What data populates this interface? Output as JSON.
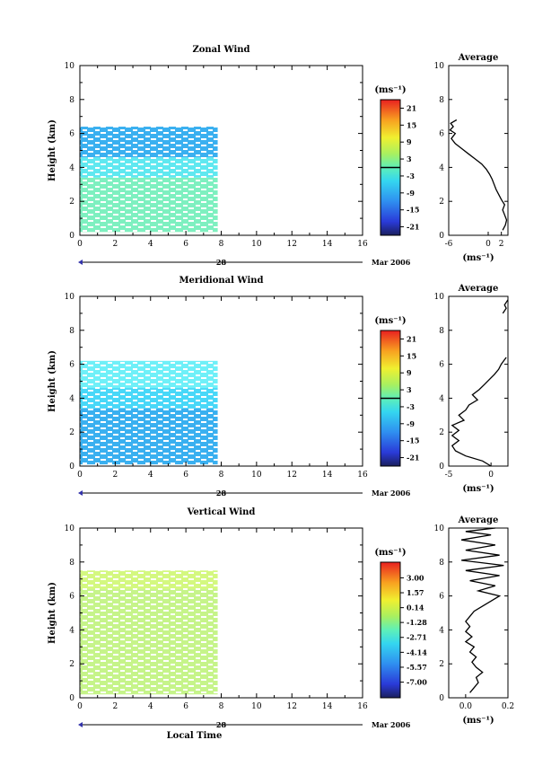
{
  "chart_data": [
    {
      "type": "heatmap",
      "title": "Zonal Wind",
      "ylabel": "Height (km)",
      "xlabel": "",
      "xlim": [
        0,
        16
      ],
      "ylim": [
        0,
        10
      ],
      "x_ticks": [
        "0",
        "2",
        "4",
        "6",
        "8",
        "10",
        "12",
        "14",
        "16"
      ],
      "y_ticks": [
        "0",
        "2",
        "4",
        "6",
        "8",
        "10"
      ],
      "date_label": "28",
      "date_suffix": "Mar 2006",
      "colorbar": {
        "unit": "(ms⁻¹)",
        "min": -24,
        "max": 24,
        "ticks": [
          "21",
          "15",
          "9",
          "3",
          "-3",
          "-9",
          "-15",
          "-21"
        ],
        "tick_values": [
          21,
          15,
          9,
          3,
          -3,
          -9,
          -15,
          -21
        ],
        "marker_value": 0
      },
      "data_extent": {
        "x": [
          0,
          7.8
        ],
        "y": [
          0.2,
          6.4
        ]
      },
      "layers": [
        {
          "y": [
            0.2,
            2.2
          ],
          "value": 1.5,
          "color": "#a4f0a4"
        },
        {
          "y": [
            0.2,
            3.4
          ],
          "value": 0.0,
          "color": "#7ef0c0"
        },
        {
          "y": [
            3.4,
            4.6
          ],
          "value": -2.0,
          "color": "#5fe8f0"
        },
        {
          "y": [
            4.6,
            6.4
          ],
          "value": -6.0,
          "color": "#3ab0f0"
        }
      ],
      "average": {
        "title": "Average",
        "unit": "(ms⁻¹)",
        "xlim": [
          -6,
          3
        ],
        "x_ticks": [
          "-6",
          "0",
          "2"
        ],
        "x_tick_values": [
          -6,
          0,
          2
        ],
        "y_ticks": [
          "0",
          "2",
          "4",
          "6",
          "8",
          "10"
        ],
        "profile": {
          "x": [
            2.2,
            2.6,
            2.8,
            2.5,
            2.2,
            2.5,
            2.0,
            1.6,
            1.2,
            0.9,
            0.6,
            0.2,
            -0.3,
            -1.0,
            -2.0,
            -3.0,
            -4.0,
            -5.0,
            -5.6,
            -5.0,
            -5.8,
            -5.3,
            -5.7,
            -4.8
          ],
          "y": [
            0.3,
            0.6,
            0.9,
            1.2,
            1.5,
            1.8,
            2.1,
            2.4,
            2.7,
            3.0,
            3.3,
            3.6,
            3.9,
            4.2,
            4.5,
            4.8,
            5.1,
            5.4,
            5.7,
            6.0,
            6.2,
            6.4,
            6.6,
            6.8
          ]
        }
      }
    },
    {
      "type": "heatmap",
      "title": "Meridional Wind",
      "ylabel": "Height (km)",
      "xlabel": "",
      "xlim": [
        0,
        16
      ],
      "ylim": [
        0,
        10
      ],
      "x_ticks": [
        "0",
        "2",
        "4",
        "6",
        "8",
        "10",
        "12",
        "14",
        "16"
      ],
      "y_ticks": [
        "0",
        "2",
        "4",
        "6",
        "8",
        "10"
      ],
      "date_label": "28",
      "date_suffix": "Mar 2006",
      "colorbar": {
        "unit": "(ms⁻¹)",
        "min": -24,
        "max": 24,
        "ticks": [
          "21",
          "15",
          "9",
          "3",
          "-3",
          "-9",
          "-15",
          "-21"
        ],
        "tick_values": [
          21,
          15,
          9,
          3,
          -3,
          -9,
          -15,
          -21
        ],
        "marker_value": 0
      },
      "data_extent": {
        "x": [
          0,
          7.8
        ],
        "y": [
          0.1,
          6.2
        ]
      },
      "layers": [
        {
          "y": [
            0.1,
            3.4
          ],
          "value": -6.0,
          "color": "#3ab0f0"
        },
        {
          "y": [
            3.4,
            4.6
          ],
          "value": -3.0,
          "color": "#48d8f8"
        },
        {
          "y": [
            4.6,
            6.2
          ],
          "value": -1.5,
          "color": "#6ff0f8"
        }
      ],
      "average": {
        "title": "Average",
        "unit": "(ms⁻¹)",
        "xlim": [
          -5,
          2
        ],
        "x_ticks": [
          "-5",
          "0"
        ],
        "x_tick_values": [
          -5,
          0
        ],
        "y_ticks": [
          "0",
          "2",
          "4",
          "6",
          "8",
          "10"
        ],
        "profile": {
          "x": [
            0.0,
            -1.0,
            -3.0,
            -4.2,
            -4.6,
            -3.8,
            -4.6,
            -3.8,
            -4.6,
            -3.2,
            -3.8,
            -3.0,
            -2.6,
            -1.6,
            -2.2,
            -1.4,
            -0.8,
            -0.2,
            0.4,
            0.9,
            1.2,
            1.5,
            1.8
          ],
          "y": [
            0.0,
            0.3,
            0.6,
            0.9,
            1.2,
            1.5,
            1.8,
            2.1,
            2.4,
            2.7,
            3.0,
            3.3,
            3.6,
            3.9,
            4.2,
            4.5,
            4.8,
            5.1,
            5.4,
            5.7,
            6.0,
            6.2,
            6.4
          ]
        },
        "profile_upper": {
          "x": [
            1.4,
            1.8,
            1.6,
            2.0
          ],
          "y": [
            9.0,
            9.3,
            9.5,
            9.8
          ]
        }
      }
    },
    {
      "type": "heatmap",
      "title": "Vertical Wind",
      "ylabel": "Height (km)",
      "xlabel": "Local Time",
      "xlim": [
        0,
        16
      ],
      "ylim": [
        0,
        10
      ],
      "x_ticks": [
        "0",
        "2",
        "4",
        "6",
        "8",
        "10",
        "12",
        "14",
        "16"
      ],
      "y_ticks": [
        "0",
        "2",
        "4",
        "6",
        "8",
        "10"
      ],
      "date_label": "28",
      "date_suffix": "Mar 2006",
      "colorbar": {
        "unit": "(ms⁻¹)",
        "min": -8.5,
        "max": 4.5,
        "ticks": [
          "3.00",
          "1.57",
          "0.14",
          "-1.28",
          "-2.71",
          "-4.14",
          "-5.57",
          "-7.00"
        ],
        "tick_values": [
          3.0,
          1.57,
          0.14,
          -1.28,
          -2.71,
          -4.14,
          -5.57,
          -7.0
        ],
        "marker_value": null
      },
      "data_extent": {
        "x": [
          0,
          7.8
        ],
        "y": [
          0.2,
          7.5
        ]
      },
      "layers": [
        {
          "y": [
            0.2,
            6.4
          ],
          "value": 0.0,
          "color": "#c6f48a"
        },
        {
          "y": [
            6.4,
            7.5
          ],
          "value": 0.1,
          "color": "#d4f880"
        }
      ],
      "average": {
        "title": "Average",
        "unit": "(ms⁻¹)",
        "xlim": [
          -0.08,
          0.2
        ],
        "x_ticks": [
          "0.0",
          "0.2"
        ],
        "x_tick_values": [
          0.0,
          0.2
        ],
        "y_ticks": [
          "0",
          "2",
          "4",
          "6",
          "8",
          "10"
        ],
        "profile": {
          "x": [
            0.02,
            0.04,
            0.06,
            0.05,
            0.08,
            0.05,
            0.03,
            0.05,
            0.02,
            0.04,
            0.0,
            0.03,
            0.0,
            0.02,
            0.0,
            0.02,
            0.04,
            0.08,
            0.12,
            0.16,
            0.06,
            0.14,
            0.02,
            0.16,
            0.0,
            0.18,
            -0.02,
            0.16,
            0.0,
            0.14,
            -0.02,
            0.12,
            0.0,
            0.14
          ],
          "y": [
            0.3,
            0.6,
            0.9,
            1.2,
            1.5,
            1.8,
            2.1,
            2.4,
            2.7,
            3.0,
            3.3,
            3.6,
            3.9,
            4.2,
            4.5,
            4.8,
            5.1,
            5.4,
            5.7,
            6.0,
            6.3,
            6.6,
            6.9,
            7.2,
            7.5,
            7.8,
            8.1,
            8.4,
            8.7,
            9.0,
            9.3,
            9.6,
            9.8,
            10.0
          ]
        }
      }
    }
  ]
}
